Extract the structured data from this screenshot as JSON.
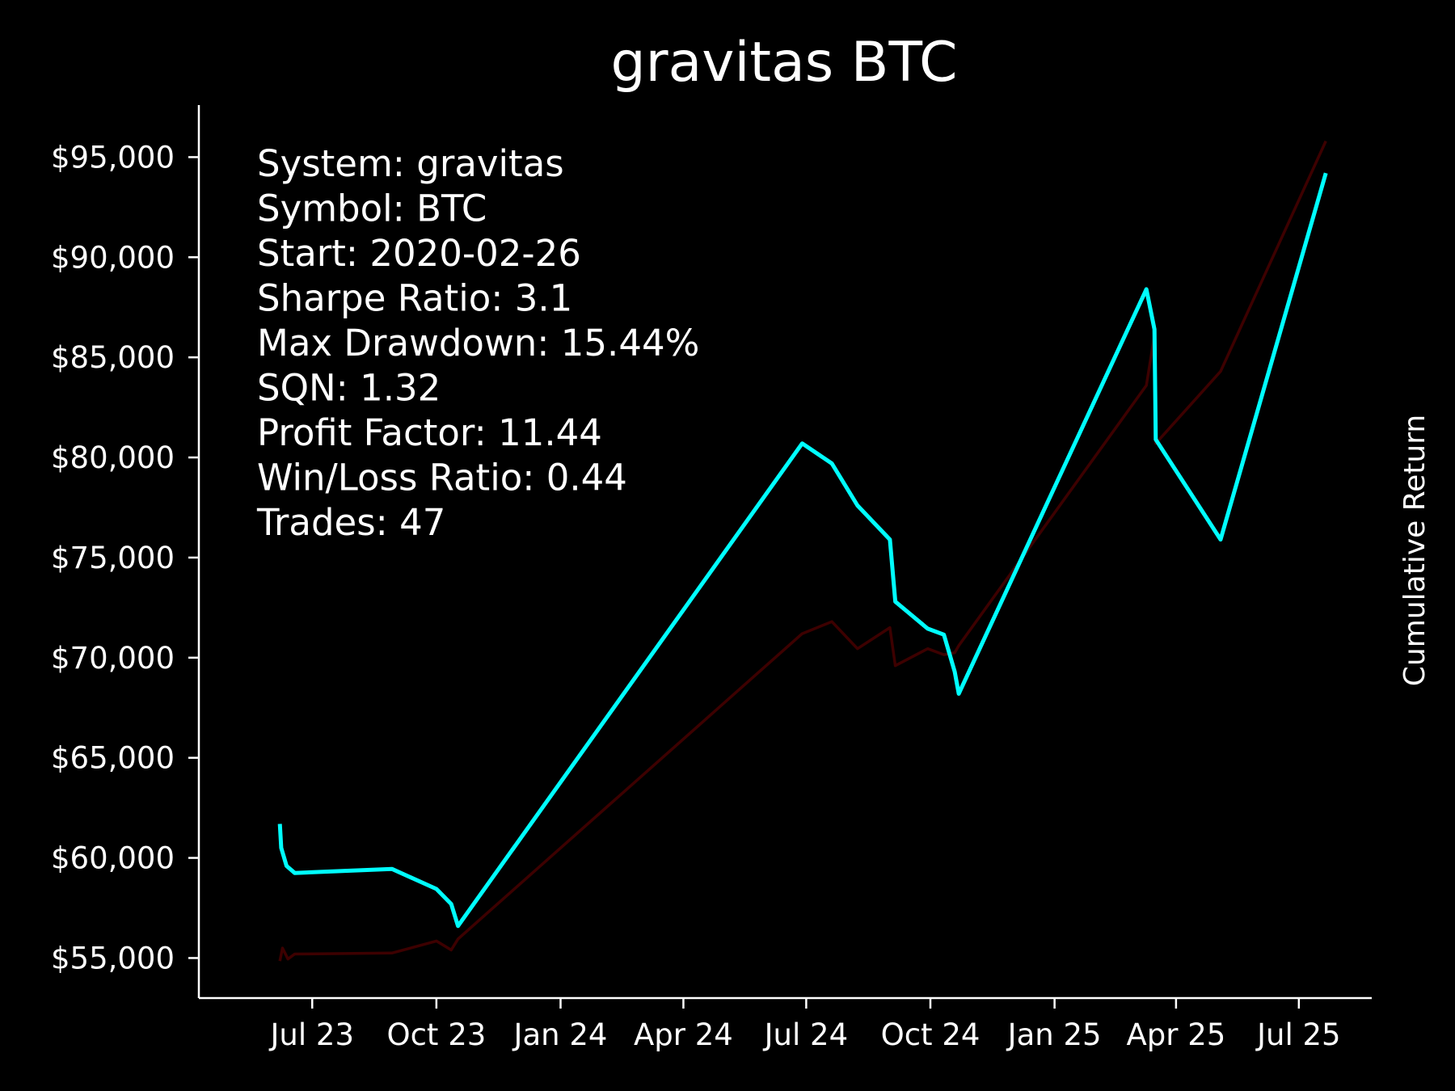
{
  "chart_data": {
    "type": "line",
    "title": "gravitas BTC",
    "xlabel": "",
    "ylabel": "Cumulative Return",
    "ylabel_position": "right",
    "x_ticks": [
      "Jul 23",
      "Oct 23",
      "Jan 24",
      "Apr 24",
      "Jul 24",
      "Oct 24",
      "Jan 25",
      "Apr 25",
      "Jul 25"
    ],
    "x_tick_dates": [
      "2023-07-01",
      "2023-10-01",
      "2024-01-01",
      "2024-04-01",
      "2024-07-01",
      "2024-10-01",
      "2025-01-01",
      "2025-04-01",
      "2025-07-01"
    ],
    "xlim": [
      "2023-04-08",
      "2025-08-24"
    ],
    "y_ticks": [
      "$55,000",
      "$60,000",
      "$65,000",
      "$70,000",
      "$75,000",
      "$80,000",
      "$85,000",
      "$90,000",
      "$95,000"
    ],
    "y_tick_values": [
      55000,
      60000,
      65000,
      70000,
      75000,
      80000,
      85000,
      90000,
      95000
    ],
    "ylim": [
      53000,
      97600
    ],
    "grid": false,
    "legend": "none",
    "stats": [
      "System: gravitas",
      "Symbol: BTC",
      "Start: 2020-02-26",
      "Sharpe Ratio: 3.1",
      "Max Drawdown: 15.44%",
      "SQN: 1.32",
      "Profit Factor: 11.44",
      "Win/Loss Ratio: 0.44",
      "Trades: 47"
    ],
    "series": [
      {
        "color": "#00ffff",
        "linewidth": 5,
        "points": [
          [
            "2023-06-07",
            61700
          ],
          [
            "2023-06-08",
            60500
          ],
          [
            "2023-06-12",
            59600
          ],
          [
            "2023-06-18",
            59250
          ],
          [
            "2023-08-29",
            59450
          ],
          [
            "2023-10-01",
            58450
          ],
          [
            "2023-10-12",
            57700
          ],
          [
            "2023-10-17",
            56600
          ],
          [
            "2024-06-28",
            80700
          ],
          [
            "2024-07-20",
            79700
          ],
          [
            "2024-08-08",
            77600
          ],
          [
            "2024-09-01",
            75900
          ],
          [
            "2024-09-05",
            72800
          ],
          [
            "2024-09-29",
            71450
          ],
          [
            "2024-10-11",
            71150
          ],
          [
            "2024-10-19",
            69300
          ],
          [
            "2024-10-22",
            68200
          ],
          [
            "2025-03-10",
            88400
          ],
          [
            "2025-03-16",
            86400
          ],
          [
            "2025-03-17",
            80900
          ],
          [
            "2025-05-04",
            75900
          ],
          [
            "2025-07-21",
            94200
          ]
        ]
      },
      {
        "color": "#3d0000",
        "linewidth": 3.5,
        "points": [
          [
            "2023-06-07",
            54850
          ],
          [
            "2023-06-09",
            55500
          ],
          [
            "2023-06-13",
            54950
          ],
          [
            "2023-06-18",
            55200
          ],
          [
            "2023-08-29",
            55250
          ],
          [
            "2023-10-01",
            55850
          ],
          [
            "2023-10-12",
            55400
          ],
          [
            "2023-10-17",
            55950
          ],
          [
            "2024-06-28",
            71200
          ],
          [
            "2024-07-20",
            71800
          ],
          [
            "2024-08-08",
            70450
          ],
          [
            "2024-09-01",
            71500
          ],
          [
            "2024-09-05",
            69600
          ],
          [
            "2024-09-29",
            70450
          ],
          [
            "2024-10-11",
            70150
          ],
          [
            "2024-10-19",
            70250
          ],
          [
            "2024-10-22",
            70600
          ],
          [
            "2025-03-10",
            83600
          ],
          [
            "2025-03-16",
            86100
          ],
          [
            "2025-03-17",
            80700
          ],
          [
            "2025-05-04",
            84300
          ],
          [
            "2025-07-21",
            95800
          ]
        ]
      }
    ]
  }
}
